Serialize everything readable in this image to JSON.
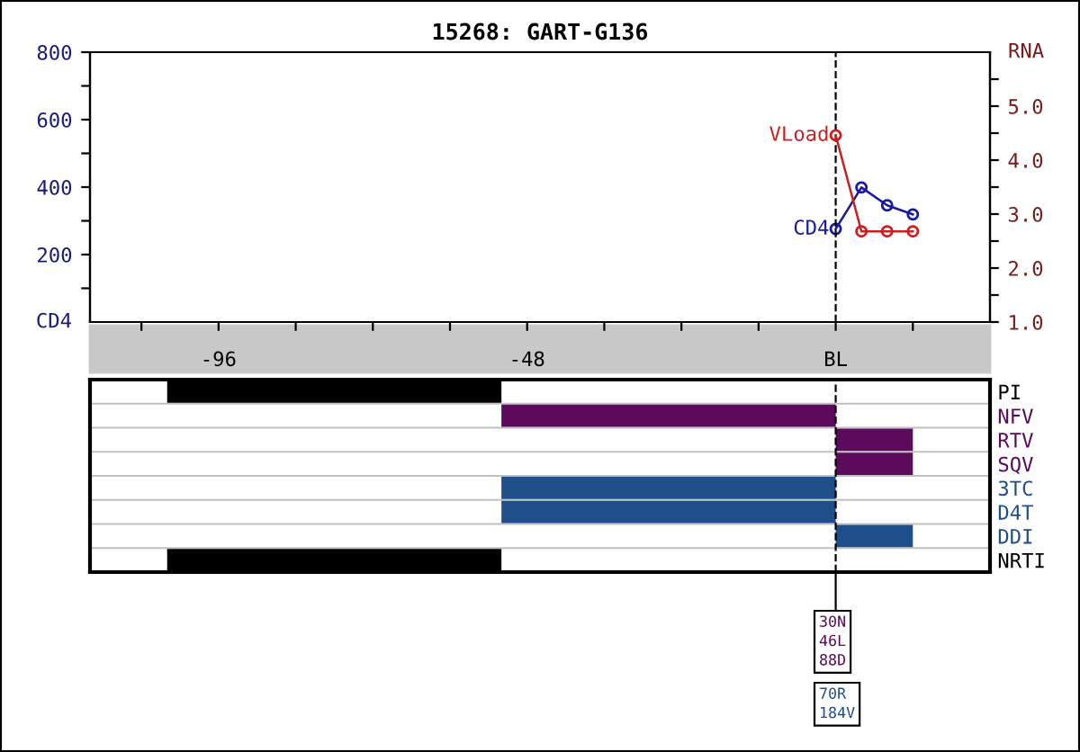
{
  "chart_data": [
    {
      "type": "line",
      "title": "15268: GART-G136",
      "ylabel": "CD4",
      "y2label": "RNA",
      "x": [
        0,
        4,
        8,
        12
      ],
      "series": [
        {
          "name": "CD4",
          "color": "#1a1a9c",
          "values": [
            276,
            399,
            346,
            319
          ]
        },
        {
          "name": "VLoad",
          "color": "#cc2020",
          "axis": "y2",
          "values": [
            4.46,
            2.68,
            2.68,
            2.68
          ]
        }
      ],
      "marker": "circle",
      "line_style": "solid",
      "grid": false,
      "legend": false,
      "xlim": [
        -116,
        24
      ],
      "xticks": [
        {
          "value": -108,
          "label": null
        },
        -96,
        {
          "value": -84,
          "label": null
        },
        {
          "value": -72,
          "label": null
        },
        {
          "value": -60,
          "label": null
        },
        -48,
        {
          "value": -36,
          "label": null
        },
        {
          "value": -24,
          "label": null
        },
        {
          "value": -12,
          "label": null
        },
        {
          "value": 0,
          "label": "BL"
        },
        {
          "value": 12,
          "label": null
        }
      ],
      "ylim": [
        0,
        800
      ],
      "yticks": [
        {
          "value": 100,
          "label": null
        },
        200,
        {
          "value": 300,
          "label": null
        },
        400,
        {
          "value": 500,
          "label": null
        },
        600,
        {
          "value": 700,
          "label": null
        },
        800
      ],
      "y2lim": [
        1,
        6
      ],
      "y2ticks": [
        {
          "value": 1,
          "label": "1.0"
        },
        {
          "value": 1.5,
          "label": null
        },
        {
          "value": 2,
          "label": "2.0"
        },
        {
          "value": 2.5,
          "label": null
        },
        {
          "value": 3,
          "label": "3.0"
        },
        {
          "value": 3.5,
          "label": null
        },
        {
          "value": 4,
          "label": "4.0"
        },
        {
          "value": 4.5,
          "label": null
        },
        {
          "value": 5,
          "label": "5.0"
        },
        {
          "value": 5.5,
          "label": null
        }
      ],
      "ref_lines": [
        {
          "axis": "x",
          "value": 0,
          "line_style": "dashed",
          "color": "#000000"
        }
      ]
    },
    {
      "type": "bar",
      "orientation": "horizontal",
      "categories": [
        "PI",
        "NFV",
        "RTV",
        "SQV",
        "3TC",
        "D4T",
        "DDI",
        "NRTI"
      ],
      "base": [
        -104,
        -52,
        0,
        0,
        -52,
        -52,
        0,
        -104
      ],
      "values": [
        52,
        52,
        12,
        12,
        52,
        52,
        12,
        52
      ],
      "colors": [
        "#000000",
        "#5c0a5c",
        "#5c0a5c",
        "#5c0a5c",
        "#1f4f8a",
        "#1f4f8a",
        "#1f4f8a",
        "#000000"
      ],
      "xlim": [
        -116,
        24
      ],
      "tick_labels": "y",
      "grid": "y",
      "ref_lines": [
        {
          "axis": "x",
          "value": 0,
          "line_style": "dashed",
          "color": "#000000"
        }
      ],
      "annotations": [
        "30N\n46L\n88D",
        "70R\n184V"
      ]
    }
  ]
}
